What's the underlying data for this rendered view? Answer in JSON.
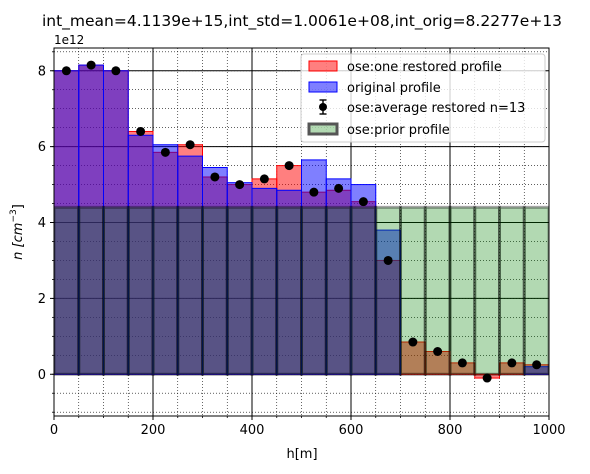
{
  "chart_data": {
    "type": "bar",
    "title": "int_mean=4.1139e+15,int_std=1.0061e+08,int_orig=8.2277e+13",
    "xlabel": "h[m]",
    "ylabel_base": "n [cm",
    "ylabel_exp": "−3",
    "ylabel_close": "]",
    "y_offset_label": "1e12",
    "xlim": [
      0,
      1000
    ],
    "ylim": [
      -1.1,
      8.6
    ],
    "x_ticks": [
      0,
      200,
      400,
      600,
      800,
      1000
    ],
    "x_tick_labels": [
      "0",
      "200",
      "400",
      "600",
      "800",
      "1000"
    ],
    "y_ticks": [
      0,
      2,
      4,
      6,
      8
    ],
    "y_tick_labels": [
      "0",
      "2",
      "4",
      "6",
      "8"
    ],
    "grid": true,
    "legend_position": "top-right",
    "bin_edges": [
      0,
      50,
      100,
      150,
      200,
      250,
      300,
      350,
      400,
      450,
      500,
      550,
      600,
      650,
      700,
      750,
      800,
      850,
      900,
      950,
      1000
    ],
    "series": [
      {
        "key": "restored",
        "name": "ose:one restored profile",
        "color": "#ff0000",
        "values": [
          8.0,
          8.15,
          8.0,
          6.4,
          5.85,
          6.05,
          5.2,
          5.0,
          5.15,
          5.5,
          4.8,
          4.85,
          4.55,
          3.0,
          0.85,
          0.6,
          0.3,
          -0.1,
          0.3,
          0.25
        ]
      },
      {
        "key": "original",
        "name": "original profile",
        "color": "#0000ff",
        "values": [
          8.0,
          8.15,
          8.0,
          6.3,
          6.05,
          5.75,
          5.45,
          5.05,
          4.9,
          4.85,
          5.65,
          5.15,
          5.0,
          3.8,
          0.0,
          0.0,
          0.0,
          0.0,
          0.0,
          0.2
        ]
      },
      {
        "key": "average",
        "name": "ose:average restored n=13",
        "color": "#000000",
        "x": [
          25,
          75,
          125,
          175,
          225,
          275,
          325,
          375,
          425,
          475,
          525,
          575,
          625,
          675,
          725,
          775,
          825,
          875,
          925,
          975
        ],
        "values": [
          8.0,
          8.15,
          8.0,
          6.4,
          5.85,
          6.05,
          5.2,
          5.0,
          5.15,
          5.5,
          4.8,
          4.9,
          4.55,
          3.0,
          0.85,
          0.6,
          0.3,
          -0.1,
          0.3,
          0.25
        ]
      },
      {
        "key": "prior",
        "name": "ose:prior profile",
        "color": "#008000",
        "values": [
          4.4,
          4.4,
          4.4,
          4.4,
          4.4,
          4.4,
          4.4,
          4.4,
          4.4,
          4.4,
          4.4,
          4.4,
          4.4,
          4.4,
          4.4,
          4.4,
          4.4,
          4.4,
          4.4,
          4.4
        ]
      }
    ]
  }
}
